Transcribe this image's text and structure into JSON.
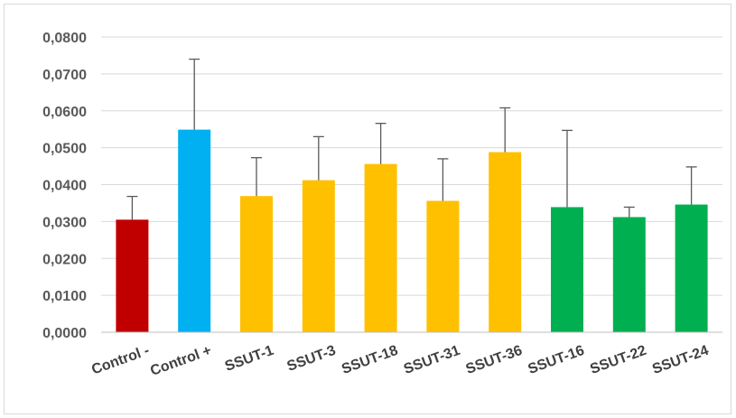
{
  "chart_data": {
    "type": "bar",
    "title": "",
    "xlabel": "",
    "ylabel": "",
    "ylim": [
      0,
      0.08
    ],
    "yticks": [
      "0,0000",
      "0,0100",
      "0,0200",
      "0,0300",
      "0,0400",
      "0,0500",
      "0,0600",
      "0,0700",
      "0,0800"
    ],
    "ytick_values": [
      0,
      0.01,
      0.02,
      0.03,
      0.04,
      0.05,
      0.06,
      0.07,
      0.08
    ],
    "grid": true,
    "categories": [
      "Control -",
      "Control +",
      "SSUT-1",
      "SSUT-3",
      "SSUT-18",
      "SSUT-31",
      "SSUT-36",
      "SSUT-16",
      "SSUT-22",
      "SSUT-24"
    ],
    "values": [
      0.0305,
      0.0549,
      0.0369,
      0.0412,
      0.0456,
      0.0356,
      0.0488,
      0.0339,
      0.0312,
      0.0346
    ],
    "errors": [
      0.0063,
      0.0191,
      0.0104,
      0.0118,
      0.011,
      0.0114,
      0.012,
      0.0208,
      0.0027,
      0.0102
    ],
    "colors": [
      "#c00000",
      "#00b0f0",
      "#ffc000",
      "#ffc000",
      "#ffc000",
      "#ffc000",
      "#ffc000",
      "#00b050",
      "#00b050",
      "#00b050"
    ]
  }
}
